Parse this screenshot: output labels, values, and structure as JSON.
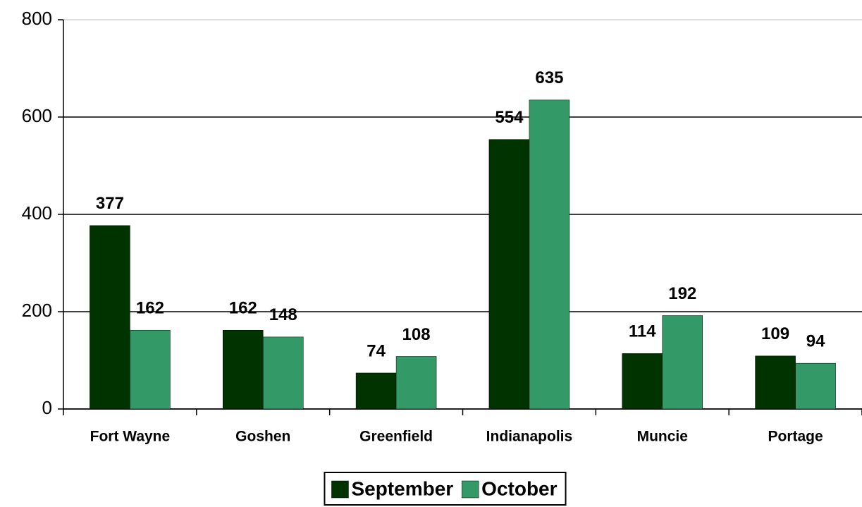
{
  "chart_data": {
    "type": "bar",
    "categories": [
      "Fort Wayne",
      "Goshen",
      "Greenfield",
      "Indianapolis",
      "Muncie",
      "Portage"
    ],
    "series": [
      {
        "name": "September",
        "color": "#003300",
        "values": [
          377,
          162,
          74,
          554,
          114,
          109
        ]
      },
      {
        "name": "October",
        "color": "#339966",
        "values": [
          162,
          148,
          108,
          635,
          192,
          94
        ]
      }
    ],
    "ylim": [
      0,
      800
    ],
    "yticks": [
      0,
      200,
      400,
      600,
      800
    ],
    "grid": true,
    "legend": "bottom"
  }
}
